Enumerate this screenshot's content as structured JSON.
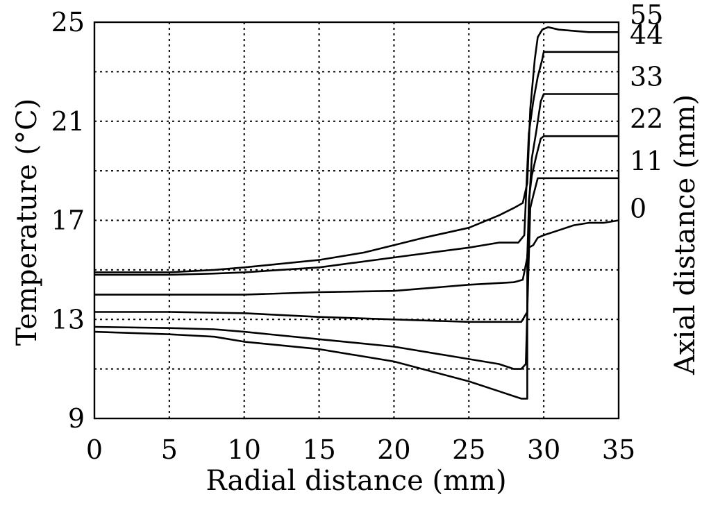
{
  "chart_data": {
    "type": "line",
    "title": "",
    "xlabel": "Radial distance (mm)",
    "ylabel": "Temperature (°C)",
    "y2label": "Axial distance (mm)",
    "xlim": [
      0,
      35
    ],
    "ylim": [
      9,
      25
    ],
    "x_ticks": [
      0,
      5,
      10,
      15,
      20,
      25,
      30,
      35
    ],
    "y_ticks": [
      9,
      13,
      17,
      21,
      25
    ],
    "y_gridlines": [
      9,
      11,
      13,
      15,
      17,
      19,
      21,
      23,
      25
    ],
    "grid": true,
    "legend": "right-side labels",
    "series": [
      {
        "name": "0",
        "points": [
          [
            0,
            12.5
          ],
          [
            5,
            12.4
          ],
          [
            8,
            12.3
          ],
          [
            10,
            12.1
          ],
          [
            15,
            11.8
          ],
          [
            20,
            11.3
          ],
          [
            25,
            10.5
          ],
          [
            27,
            10.1
          ],
          [
            28,
            9.9
          ],
          [
            28.5,
            9.8
          ],
          [
            28.9,
            9.8
          ],
          [
            28.9,
            15.6
          ],
          [
            29,
            15.9
          ],
          [
            29.3,
            16.0
          ],
          [
            29.6,
            16.3
          ],
          [
            30,
            16.4
          ],
          [
            31,
            16.6
          ],
          [
            32,
            16.8
          ],
          [
            33,
            16.9
          ],
          [
            34,
            16.9
          ],
          [
            35,
            17.0
          ]
        ]
      },
      {
        "name": "11",
        "points": [
          [
            0,
            12.7
          ],
          [
            5,
            12.65
          ],
          [
            8,
            12.6
          ],
          [
            10,
            12.5
          ],
          [
            15,
            12.2
          ],
          [
            20,
            11.9
          ],
          [
            25,
            11.4
          ],
          [
            27,
            11.2
          ],
          [
            28,
            11.0
          ],
          [
            28.5,
            11.0
          ],
          [
            28.8,
            11.2
          ],
          [
            29.0,
            15.5
          ],
          [
            29.1,
            17.5
          ],
          [
            29.3,
            18.0
          ],
          [
            29.6,
            18.7
          ],
          [
            30,
            18.7
          ],
          [
            35,
            18.7
          ]
        ]
      },
      {
        "name": "22",
        "points": [
          [
            0,
            13.3
          ],
          [
            5,
            13.3
          ],
          [
            10,
            13.25
          ],
          [
            15,
            13.1
          ],
          [
            20,
            13.0
          ],
          [
            25,
            12.9
          ],
          [
            28.5,
            12.9
          ],
          [
            28.9,
            13.3
          ],
          [
            29.0,
            17.8
          ],
          [
            29.2,
            18.8
          ],
          [
            29.5,
            19.6
          ],
          [
            29.8,
            20.3
          ],
          [
            30,
            20.4
          ],
          [
            35,
            20.4
          ]
        ]
      },
      {
        "name": "33",
        "points": [
          [
            0,
            14.0
          ],
          [
            5,
            14.0
          ],
          [
            10,
            14.0
          ],
          [
            15,
            14.1
          ],
          [
            20,
            14.15
          ],
          [
            25,
            14.4
          ],
          [
            28,
            14.5
          ],
          [
            28.6,
            14.6
          ],
          [
            28.9,
            15.5
          ],
          [
            29.0,
            17.5
          ],
          [
            29.2,
            19.5
          ],
          [
            29.5,
            20.6
          ],
          [
            29.8,
            21.8
          ],
          [
            30,
            22.1
          ],
          [
            35,
            22.1
          ]
        ]
      },
      {
        "name": "44",
        "points": [
          [
            0,
            14.8
          ],
          [
            5,
            14.8
          ],
          [
            8,
            14.85
          ],
          [
            10,
            14.9
          ],
          [
            15,
            15.1
          ],
          [
            20,
            15.5
          ],
          [
            25,
            15.9
          ],
          [
            27,
            16.1
          ],
          [
            28.3,
            16.1
          ],
          [
            28.7,
            16.4
          ],
          [
            29.0,
            20.5
          ],
          [
            29.3,
            21.8
          ],
          [
            29.6,
            22.8
          ],
          [
            29.9,
            23.5
          ],
          [
            30,
            23.8
          ],
          [
            35,
            23.8
          ]
        ]
      },
      {
        "name": "55",
        "points": [
          [
            0,
            14.9
          ],
          [
            5,
            14.9
          ],
          [
            8,
            15.0
          ],
          [
            10,
            15.1
          ],
          [
            15,
            15.4
          ],
          [
            18,
            15.7
          ],
          [
            20,
            16.0
          ],
          [
            22,
            16.3
          ],
          [
            25,
            16.7
          ],
          [
            27,
            17.2
          ],
          [
            28,
            17.5
          ],
          [
            28.6,
            17.7
          ],
          [
            28.9,
            18.5
          ],
          [
            29.1,
            21.5
          ],
          [
            29.4,
            23.5
          ],
          [
            29.6,
            24.4
          ],
          [
            29.9,
            24.7
          ],
          [
            30.3,
            24.8
          ],
          [
            31,
            24.7
          ],
          [
            33,
            24.6
          ],
          [
            35,
            24.6
          ]
        ]
      }
    ]
  }
}
